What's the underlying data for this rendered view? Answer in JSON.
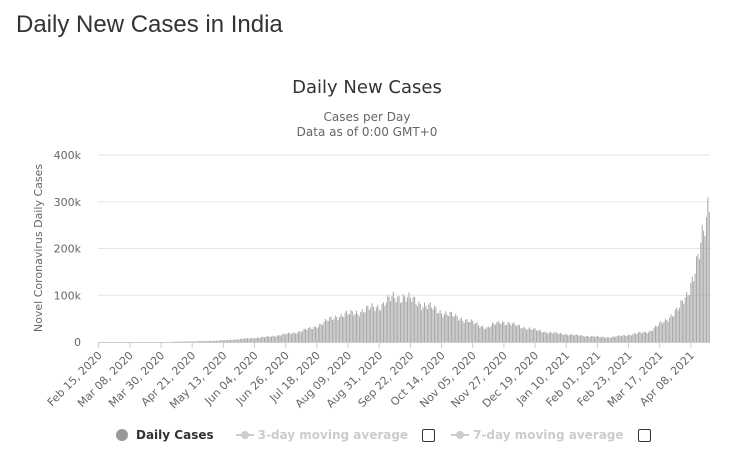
{
  "page": {
    "title": "Daily New Cases in India"
  },
  "legend": {
    "items": [
      {
        "label": "Daily Cases",
        "active": true
      },
      {
        "label": "3-day moving average",
        "active": false
      },
      {
        "label": "7-day moving average",
        "active": false
      }
    ]
  },
  "colors": {
    "bar": "#a6a6a6",
    "legend_dot": "#999999",
    "gridline": "#e6e6e6",
    "axis": "#cccccc"
  },
  "chart_data": {
    "type": "bar",
    "title": "Daily New Cases",
    "subtitle_lines": [
      "Cases per Day",
      "Data as of 0:00 GMT+0"
    ],
    "ylabel": "Novel Coronavirus Daily Cases",
    "ylim": [
      0,
      400000
    ],
    "y_ticks": [
      {
        "value": 0,
        "label": "0"
      },
      {
        "value": 100000,
        "label": "100k"
      },
      {
        "value": 200000,
        "label": "200k"
      },
      {
        "value": 300000,
        "label": "300k"
      },
      {
        "value": 400000,
        "label": "400k"
      }
    ],
    "x_range": [
      "2020-02-15",
      "2021-04-21"
    ],
    "x_ticks": [
      "Feb 15, 2020",
      "Mar 08, 2020",
      "Mar 30, 2020",
      "Apr 21, 2020",
      "May 13, 2020",
      "Jun 04, 2020",
      "Jun 26, 2020",
      "Jul 18, 2020",
      "Aug 09, 2020",
      "Aug 31, 2020",
      "Sep 22, 2020",
      "Oct 14, 2020",
      "Nov 05, 2020",
      "Nov 27, 2020",
      "Dec 19, 2020",
      "Jan 10, 2021",
      "Feb 01, 2021",
      "Feb 23, 2021",
      "Mar 17, 2021",
      "Apr 08, 2021"
    ],
    "grid": true,
    "legend_position": "bottom",
    "series": [
      {
        "name": "Daily Cases",
        "points": [
          [
            "2020-02-15",
            0
          ],
          [
            "2020-03-15",
            30
          ],
          [
            "2020-04-01",
            400
          ],
          [
            "2020-04-15",
            1000
          ],
          [
            "2020-05-01",
            2000
          ],
          [
            "2020-05-15",
            3800
          ],
          [
            "2020-06-01",
            8000
          ],
          [
            "2020-06-15",
            11500
          ],
          [
            "2020-07-01",
            19000
          ],
          [
            "2020-07-15",
            30000
          ],
          [
            "2020-08-01",
            55000
          ],
          [
            "2020-08-15",
            63000
          ],
          [
            "2020-09-01",
            78000
          ],
          [
            "2020-09-10",
            95000
          ],
          [
            "2020-09-17",
            97000
          ],
          [
            "2020-10-01",
            80000
          ],
          [
            "2020-10-15",
            63000
          ],
          [
            "2020-11-01",
            46000
          ],
          [
            "2020-11-15",
            30000
          ],
          [
            "2020-11-25",
            44000
          ],
          [
            "2020-12-05",
            36000
          ],
          [
            "2020-12-20",
            25000
          ],
          [
            "2021-01-01",
            19000
          ],
          [
            "2021-01-15",
            15000
          ],
          [
            "2021-02-01",
            11000
          ],
          [
            "2021-02-10",
            10000
          ],
          [
            "2021-02-25",
            16000
          ],
          [
            "2021-03-10",
            23000
          ],
          [
            "2021-03-20",
            44000
          ],
          [
            "2021-03-31",
            72000
          ],
          [
            "2021-04-05",
            100000
          ],
          [
            "2021-04-10",
            145000
          ],
          [
            "2021-04-14",
            185000
          ],
          [
            "2021-04-17",
            234000
          ],
          [
            "2021-04-19",
            259000
          ],
          [
            "2021-04-20",
            295000
          ],
          [
            "2021-04-21",
            315000
          ]
        ]
      }
    ]
  }
}
